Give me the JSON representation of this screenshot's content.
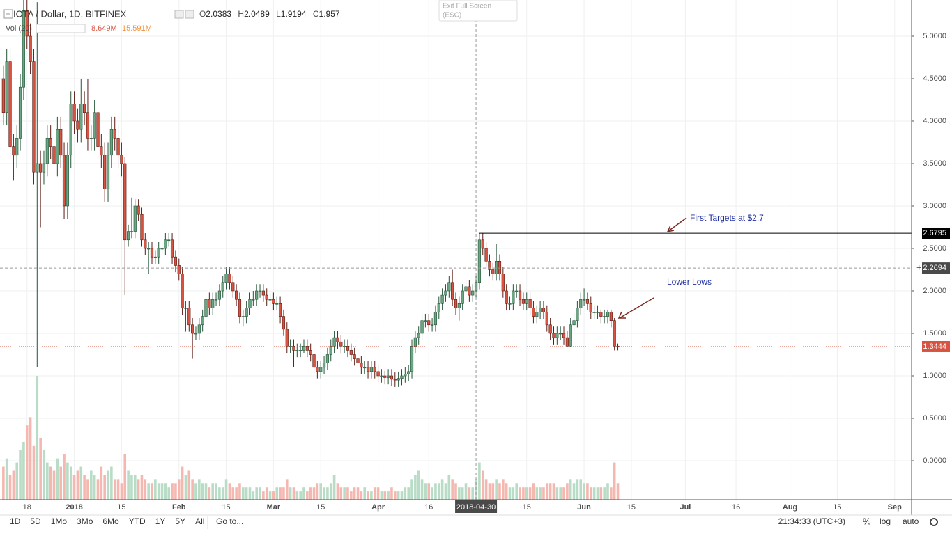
{
  "chart_data": {
    "type": "candlestick",
    "title": "IOTA / Dollar, 1D, BITFINEX",
    "ohlc_legend": [
      {
        "label": "O",
        "value": 2.0383
      },
      {
        "label": "H",
        "value": 2.0489
      },
      {
        "label": "L",
        "value": 1.9194
      },
      {
        "label": "C",
        "value": 1.957
      }
    ],
    "volume_legend": {
      "label": "Vol (20)",
      "value": "8.649M",
      "ma": "15.591M"
    },
    "x": [
      0,
      1,
      2,
      3,
      4,
      5,
      6,
      7,
      8,
      9,
      10,
      11,
      12,
      13,
      14,
      15,
      16,
      17,
      18,
      19,
      20,
      21,
      22,
      23,
      24,
      25,
      26,
      27,
      28,
      29,
      30,
      31,
      32,
      33,
      34,
      35,
      36,
      37,
      38,
      39,
      40,
      41,
      42,
      43,
      44,
      45,
      46,
      47,
      48,
      49,
      50,
      51,
      52,
      53,
      54,
      55,
      56,
      57,
      58,
      59,
      60,
      61,
      62,
      63,
      64,
      65,
      66,
      67,
      68,
      69,
      70,
      71,
      72,
      73,
      74,
      75,
      76,
      77,
      78,
      79,
      80,
      81,
      82,
      83,
      84,
      85,
      86,
      87,
      88,
      89,
      90,
      91,
      92,
      93,
      94,
      95,
      96,
      97,
      98,
      99,
      100,
      101,
      102,
      103,
      104,
      105,
      106,
      107,
      108,
      109,
      110,
      111,
      112,
      113,
      114,
      115,
      116,
      117,
      118,
      119,
      120,
      121,
      122,
      123,
      124,
      125,
      126,
      127,
      128,
      129,
      130,
      131,
      132,
      133,
      134,
      135,
      136,
      137,
      138,
      139,
      140,
      141,
      142,
      143,
      144,
      145,
      146,
      147,
      148,
      149,
      150,
      151,
      152,
      153,
      154,
      155,
      156,
      157,
      158,
      159,
      160,
      161,
      162,
      163,
      164,
      165,
      166,
      167,
      168,
      169,
      170,
      171,
      172,
      173,
      174,
      175,
      176,
      177,
      178,
      179,
      180,
      181,
      182
    ],
    "open": [
      4.5,
      4.1,
      4.7,
      3.7,
      3.6,
      3.8,
      4.4,
      5.3,
      5.0,
      4.7,
      3.4,
      3.5,
      3.4,
      3.5,
      3.8,
      3.7,
      3.5,
      3.9,
      3.6,
      3.0,
      3.6,
      4.2,
      4.0,
      3.9,
      4.2,
      4.1,
      3.8,
      3.8,
      4.1,
      3.7,
      3.6,
      3.2,
      3.6,
      3.9,
      3.8,
      3.6,
      3.5,
      2.6,
      2.7,
      2.7,
      3.0,
      2.9,
      2.6,
      2.5,
      2.5,
      2.4,
      2.4,
      2.5,
      2.5,
      2.6,
      2.6,
      2.4,
      2.3,
      2.2,
      1.8,
      1.8,
      1.6,
      1.5,
      1.5,
      1.6,
      1.7,
      1.9,
      1.8,
      1.9,
      1.9,
      2.0,
      2.1,
      2.2,
      2.1,
      2.0,
      1.9,
      1.7,
      1.7,
      1.8,
      1.9,
      1.9,
      2.0,
      2.0,
      1.95,
      1.9,
      1.9,
      1.85,
      1.85,
      1.7,
      1.55,
      1.35,
      1.35,
      1.3,
      1.3,
      1.3,
      1.35,
      1.3,
      1.25,
      1.1,
      1.05,
      1.1,
      1.15,
      1.25,
      1.35,
      1.45,
      1.4,
      1.35,
      1.35,
      1.3,
      1.25,
      1.2,
      1.15,
      1.1,
      1.1,
      1.05,
      1.1,
      1.05,
      1.0,
      1.0,
      0.98,
      1.0,
      0.96,
      0.95,
      0.97,
      1.0,
      1.02,
      1.05,
      1.35,
      1.45,
      1.5,
      1.65,
      1.65,
      1.6,
      1.6,
      1.75,
      1.85,
      1.95,
      2.0,
      2.1,
      1.9,
      1.8,
      1.85,
      2.0,
      2.05,
      1.95,
      2.0,
      2.1,
      2.6,
      2.5,
      2.35,
      2.25,
      2.2,
      2.35,
      2.2,
      2.0,
      1.85,
      1.85,
      2.0,
      2.0,
      1.9,
      1.85,
      1.9,
      1.8,
      1.7,
      1.75,
      1.8,
      1.75,
      1.6,
      1.5,
      1.45,
      1.5,
      1.5,
      1.45,
      1.35,
      1.6,
      1.65,
      1.8,
      1.9,
      1.9,
      1.85,
      1.75,
      1.75,
      1.75,
      1.7,
      1.7,
      1.75,
      1.65,
      1.35
    ],
    "high": [
      4.65,
      4.85,
      4.85,
      3.85,
      3.95,
      4.55,
      5.45,
      5.45,
      5.15,
      4.85,
      5.4,
      3.65,
      3.65,
      3.95,
      3.95,
      3.85,
      4.05,
      4.05,
      3.75,
      3.75,
      4.35,
      4.35,
      4.15,
      4.5,
      4.35,
      4.5,
      3.95,
      4.25,
      4.25,
      3.85,
      3.75,
      3.75,
      4.05,
      4.05,
      3.95,
      3.75,
      3.58,
      2.78,
      3.1,
      3.08,
      3.08,
      2.98,
      2.68,
      2.58,
      2.58,
      2.48,
      2.58,
      2.58,
      2.68,
      2.68,
      2.68,
      2.48,
      2.38,
      2.28,
      1.88,
      1.88,
      1.68,
      1.58,
      1.68,
      1.78,
      1.98,
      1.98,
      1.98,
      1.98,
      2.08,
      2.18,
      2.28,
      2.28,
      2.18,
      2.08,
      1.98,
      1.78,
      1.88,
      1.98,
      2.0,
      2.08,
      2.08,
      2.08,
      2.03,
      1.98,
      1.98,
      1.93,
      1.93,
      1.78,
      1.63,
      1.43,
      1.43,
      1.38,
      1.38,
      1.43,
      1.43,
      1.38,
      1.33,
      1.18,
      1.18,
      1.23,
      1.33,
      1.43,
      1.53,
      1.53,
      1.48,
      1.43,
      1.43,
      1.38,
      1.33,
      1.28,
      1.23,
      1.18,
      1.18,
      1.18,
      1.18,
      1.13,
      1.08,
      1.06,
      1.08,
      1.08,
      1.04,
      1.05,
      1.08,
      1.1,
      1.13,
      1.43,
      1.53,
      1.58,
      1.73,
      1.73,
      1.73,
      1.68,
      1.83,
      1.93,
      2.03,
      2.08,
      2.18,
      2.25,
      1.98,
      1.93,
      2.08,
      2.13,
      2.13,
      2.08,
      2.18,
      2.68,
      2.68,
      2.58,
      2.43,
      2.33,
      2.55,
      2.43,
      2.28,
      2.08,
      1.93,
      2.08,
      2.08,
      2.08,
      1.98,
      1.98,
      1.98,
      1.88,
      1.83,
      1.88,
      1.88,
      1.83,
      1.68,
      1.58,
      1.58,
      1.58,
      1.58,
      1.53,
      1.68,
      1.73,
      1.88,
      1.98,
      2.03,
      1.98,
      1.93,
      1.83,
      1.83,
      1.78,
      1.78,
      1.78,
      1.78,
      1.68,
      1.38
    ],
    "low": [
      3.95,
      3.95,
      3.55,
      3.3,
      3.45,
      3.65,
      4.25,
      4.85,
      4.55,
      3.25,
      1.1,
      2.75,
      3.25,
      3.35,
      3.55,
      3.35,
      3.35,
      3.45,
      2.85,
      2.85,
      3.45,
      3.85,
      3.75,
      3.75,
      3.95,
      3.65,
      3.65,
      3.65,
      3.55,
      3.45,
      3.05,
      3.05,
      3.45,
      3.65,
      3.45,
      3.35,
      1.95,
      2.52,
      2.62,
      2.62,
      2.82,
      2.52,
      2.42,
      2.2,
      2.32,
      2.32,
      2.32,
      2.42,
      2.42,
      2.52,
      2.32,
      2.22,
      2.12,
      1.72,
      1.52,
      1.52,
      1.2,
      1.42,
      1.42,
      1.52,
      1.62,
      1.72,
      1.72,
      1.82,
      1.82,
      1.92,
      2.02,
      2.02,
      1.92,
      1.82,
      1.62,
      1.58,
      1.62,
      1.72,
      1.82,
      1.82,
      1.92,
      1.87,
      1.82,
      1.82,
      1.77,
      1.77,
      1.62,
      1.47,
      1.27,
      1.27,
      1.1,
      1.22,
      1.22,
      1.27,
      1.22,
      1.17,
      1.02,
      0.97,
      0.97,
      1.02,
      1.07,
      1.17,
      1.27,
      1.32,
      1.27,
      1.27,
      1.22,
      1.17,
      1.12,
      1.07,
      1.02,
      1.02,
      0.97,
      0.97,
      0.97,
      0.92,
      0.92,
      0.9,
      0.9,
      0.88,
      0.87,
      0.87,
      0.89,
      0.92,
      0.94,
      0.97,
      1.27,
      1.37,
      1.42,
      1.57,
      1.52,
      1.52,
      1.52,
      1.67,
      1.77,
      1.87,
      1.92,
      1.82,
      1.72,
      1.65,
      1.77,
      1.92,
      1.87,
      1.87,
      1.92,
      2.02,
      2.42,
      2.27,
      2.17,
      2.12,
      2.12,
      2.12,
      1.92,
      1.77,
      1.77,
      1.77,
      1.92,
      1.82,
      1.77,
      1.77,
      1.72,
      1.62,
      1.62,
      1.67,
      1.67,
      1.52,
      1.42,
      1.37,
      1.37,
      1.42,
      1.37,
      1.34,
      1.34,
      1.52,
      1.57,
      1.72,
      1.82,
      1.77,
      1.67,
      1.67,
      1.67,
      1.62,
      1.62,
      1.62,
      1.57,
      1.3,
      1.3
    ],
    "close": [
      4.1,
      4.7,
      3.7,
      3.6,
      3.8,
      4.4,
      5.3,
      5.0,
      4.7,
      3.4,
      3.5,
      3.4,
      3.5,
      3.8,
      3.7,
      3.5,
      3.9,
      3.6,
      3.0,
      3.6,
      4.2,
      4.0,
      3.9,
      4.2,
      4.1,
      3.8,
      3.8,
      4.1,
      3.7,
      3.6,
      3.2,
      3.6,
      3.9,
      3.8,
      3.6,
      3.5,
      2.6,
      2.7,
      2.7,
      3.0,
      2.9,
      2.6,
      2.5,
      2.5,
      2.4,
      2.4,
      2.5,
      2.5,
      2.6,
      2.6,
      2.4,
      2.3,
      2.2,
      1.8,
      1.8,
      1.6,
      1.5,
      1.5,
      1.6,
      1.7,
      1.9,
      1.8,
      1.9,
      1.9,
      2.0,
      2.1,
      2.2,
      2.1,
      2.0,
      1.9,
      1.7,
      1.7,
      1.8,
      1.9,
      1.9,
      2.0,
      2.0,
      1.95,
      1.9,
      1.9,
      1.85,
      1.85,
      1.7,
      1.55,
      1.35,
      1.35,
      1.3,
      1.3,
      1.3,
      1.35,
      1.3,
      1.25,
      1.1,
      1.05,
      1.1,
      1.15,
      1.25,
      1.35,
      1.45,
      1.4,
      1.35,
      1.35,
      1.3,
      1.25,
      1.2,
      1.15,
      1.1,
      1.1,
      1.05,
      1.1,
      1.05,
      1.0,
      1.0,
      0.98,
      1.0,
      0.96,
      0.95,
      0.97,
      1.0,
      1.02,
      1.05,
      1.35,
      1.45,
      1.5,
      1.65,
      1.65,
      1.6,
      1.6,
      1.75,
      1.85,
      1.95,
      2.0,
      2.1,
      1.9,
      1.8,
      1.85,
      2.0,
      2.05,
      1.95,
      2.0,
      2.1,
      2.6,
      2.5,
      2.35,
      2.25,
      2.2,
      2.35,
      2.2,
      2.0,
      1.85,
      1.85,
      2.0,
      2.0,
      1.9,
      1.85,
      1.9,
      1.8,
      1.7,
      1.75,
      1.8,
      1.75,
      1.6,
      1.5,
      1.45,
      1.5,
      1.5,
      1.45,
      1.35,
      1.6,
      1.65,
      1.8,
      1.9,
      1.9,
      1.85,
      1.75,
      1.75,
      1.75,
      1.7,
      1.7,
      1.75,
      1.65,
      1.35,
      1.34
    ],
    "volume": [
      8,
      10,
      6,
      7,
      9,
      12,
      14,
      18,
      20,
      13,
      30,
      15,
      12,
      9,
      8,
      7,
      10,
      8,
      11,
      9,
      8,
      6,
      7,
      8,
      6,
      5,
      7,
      6,
      5,
      8,
      6,
      7,
      8,
      5,
      5,
      4,
      11,
      7,
      6,
      6,
      5,
      6,
      5,
      4,
      4,
      5,
      4,
      4,
      4,
      3,
      4,
      4,
      5,
      8,
      6,
      7,
      5,
      4,
      5,
      4,
      4,
      3,
      4,
      4,
      3,
      3,
      5,
      4,
      3,
      3,
      4,
      3,
      3,
      3,
      2,
      3,
      3,
      2,
      3,
      2,
      2,
      3,
      3,
      3,
      5,
      3,
      3,
      2,
      2,
      3,
      2,
      3,
      3,
      4,
      4,
      3,
      3,
      4,
      6,
      4,
      3,
      3,
      3,
      2,
      3,
      3,
      2,
      3,
      2,
      2,
      3,
      3,
      2,
      2,
      2,
      3,
      2,
      2,
      2,
      3,
      3,
      5,
      6,
      7,
      5,
      4,
      4,
      3,
      4,
      4,
      5,
      4,
      6,
      5,
      4,
      3,
      3,
      4,
      3,
      3,
      5,
      9,
      7,
      5,
      4,
      4,
      5,
      4,
      5,
      4,
      3,
      3,
      4,
      3,
      3,
      3,
      3,
      4,
      3,
      3,
      3,
      4,
      4,
      4,
      3,
      3,
      3,
      4,
      5,
      4,
      5,
      5,
      4,
      4,
      3,
      3,
      3,
      3,
      3,
      4,
      3,
      9,
      4
    ],
    "colors": {
      "up": "#6ba583",
      "down": "#d75442",
      "up_border": "#225437",
      "down_border": "#5b1a13",
      "volume_up": "#b8dcc6",
      "volume_down": "#f4b8b1"
    },
    "xlim": [
      -1,
      269
    ],
    "ylim": [
      -0.459,
      5.426
    ],
    "xticks": [
      {
        "value": 7,
        "label": "18"
      },
      {
        "value": 21,
        "label": "2018"
      },
      {
        "value": 35,
        "label": "15"
      },
      {
        "value": 52,
        "label": "Feb"
      },
      {
        "value": 66,
        "label": "15"
      },
      {
        "value": 80,
        "label": "Mar"
      },
      {
        "value": 94,
        "label": "15"
      },
      {
        "value": 111,
        "label": "Apr"
      },
      {
        "value": 126,
        "label": "16"
      },
      {
        "value": 155,
        "label": "15"
      },
      {
        "value": 172,
        "label": "Jun"
      },
      {
        "value": 186,
        "label": "15"
      },
      {
        "value": 202,
        "label": "Jul"
      },
      {
        "value": 217,
        "label": "16"
      },
      {
        "value": 233,
        "label": "Aug"
      },
      {
        "value": 247,
        "label": "15"
      },
      {
        "value": 264,
        "label": "Sep"
      }
    ],
    "yticks": [
      {
        "value": 0,
        "label": "0.0000"
      },
      {
        "value": 0.5,
        "label": "0.5000"
      },
      {
        "value": 1,
        "label": "1.0000"
      },
      {
        "value": 1.5,
        "label": "1.5000"
      },
      {
        "value": 2,
        "label": "2.0000"
      },
      {
        "value": 2.5,
        "label": "2.5000"
      },
      {
        "value": 3,
        "label": "3.0000"
      },
      {
        "value": 3.5,
        "label": "3.5000"
      },
      {
        "value": 4,
        "label": "4.0000"
      },
      {
        "value": 4.5,
        "label": "4.5000"
      },
      {
        "value": 5,
        "label": "5.0000"
      }
    ],
    "grid": true,
    "price_lines": [
      {
        "value": 2.6795,
        "x_start": 141,
        "color": "#000000"
      },
      {
        "value": 1.3444,
        "x_start": -1,
        "color": "#d75442"
      }
    ],
    "crosshair": {
      "x": 140,
      "x_label": "2018-04-30",
      "y": 2.2694
    },
    "annotations": [
      "First Targets at $2.7",
      "Lower Lows"
    ]
  },
  "ui": {
    "ranges": [
      "1D",
      "5D",
      "1Mo",
      "3Mo",
      "6Mo",
      "YTD",
      "1Y",
      "5Y",
      "All"
    ],
    "goto": "Go to...",
    "clock": "21:34:33 (UTC+3)",
    "percent": "%",
    "log": "log",
    "auto": "auto",
    "tooltip": [
      "Exit Full Screen",
      "(ESC)"
    ]
  }
}
